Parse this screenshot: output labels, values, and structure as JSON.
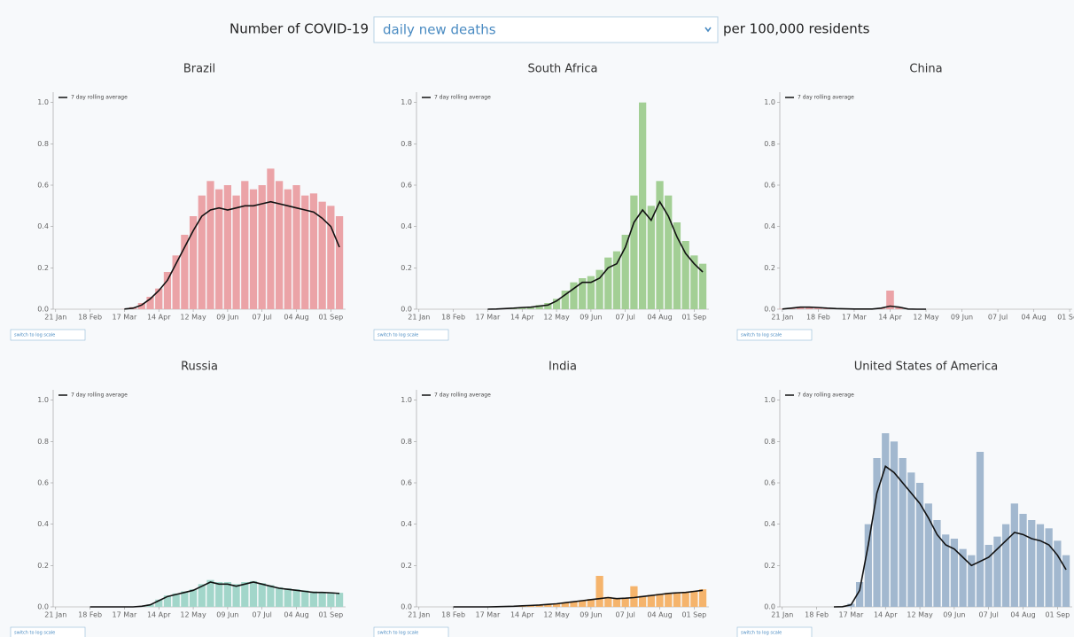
{
  "header": {
    "prefix": "Number of COVID-19",
    "select": "daily new deaths",
    "suffix": "per 100,000 residents"
  },
  "chart_data": [
    {
      "type": "bar",
      "title": "Brazil",
      "button": "switch to log scale",
      "x": [
        0,
        7,
        14,
        21,
        28,
        35,
        42,
        49,
        56,
        63,
        70,
        77,
        84,
        91,
        98,
        105,
        112,
        119,
        126,
        133,
        140,
        147,
        154,
        161,
        168,
        175,
        182,
        189,
        196,
        203,
        210,
        217,
        224,
        231
      ],
      "xlim": [
        -2,
        236
      ],
      "ylim": [
        0,
        1.05
      ],
      "xticks": [
        {
          "value": 0,
          "label": "21 Jan"
        },
        {
          "value": 28,
          "label": "18 Feb"
        },
        {
          "value": 56,
          "label": "17 Mar"
        },
        {
          "value": 84,
          "label": "14 Apr"
        },
        {
          "value": 112,
          "label": "12 May"
        },
        {
          "value": 140,
          "label": "09 Jun"
        },
        {
          "value": 168,
          "label": "07 Jul"
        },
        {
          "value": 196,
          "label": "04 Aug"
        },
        {
          "value": 224,
          "label": "01 Sep"
        }
      ],
      "yticks": [
        {
          "value": 0,
          "label": "0.0"
        },
        0.2,
        0.4,
        0.6,
        0.8,
        {
          "value": 1,
          "label": "1.0"
        }
      ],
      "series": [
        {
          "type": "bar",
          "color": "#eba3a7",
          "values": [
            null,
            null,
            null,
            null,
            null,
            null,
            null,
            null,
            0.001,
            0.01,
            0.03,
            0.06,
            0.1,
            0.18,
            0.26,
            0.36,
            0.45,
            0.55,
            0.62,
            0.58,
            0.6,
            0.55,
            0.62,
            0.58,
            0.6,
            0.68,
            0.62,
            0.58,
            0.6,
            0.55,
            0.56,
            0.52,
            0.5,
            0.45
          ]
        },
        {
          "type": "line",
          "name": "7 day rolling average",
          "color": "#111111",
          "values": [
            null,
            null,
            null,
            null,
            null,
            null,
            null,
            null,
            0.001,
            0.005,
            0.02,
            0.05,
            0.09,
            0.14,
            0.22,
            0.3,
            0.38,
            0.45,
            0.48,
            0.49,
            0.48,
            0.49,
            0.5,
            0.5,
            0.51,
            0.52,
            0.51,
            0.5,
            0.49,
            0.48,
            0.47,
            0.44,
            0.4,
            0.3
          ]
        }
      ]
    },
    {
      "type": "bar",
      "title": "South Africa",
      "button": "switch to log scale",
      "x": [
        0,
        7,
        14,
        21,
        28,
        35,
        42,
        49,
        56,
        63,
        70,
        77,
        84,
        91,
        98,
        105,
        112,
        119,
        126,
        133,
        140,
        147,
        154,
        161,
        168,
        175,
        182,
        189,
        196,
        203,
        210,
        217,
        224,
        231
      ],
      "xlim": [
        -2,
        236
      ],
      "ylim": [
        0,
        1.05
      ],
      "xticks": [
        {
          "value": 0,
          "label": "21 Jan"
        },
        {
          "value": 28,
          "label": "18 Feb"
        },
        {
          "value": 56,
          "label": "17 Mar"
        },
        {
          "value": 84,
          "label": "14 Apr"
        },
        {
          "value": 112,
          "label": "12 May"
        },
        {
          "value": 140,
          "label": "09 Jun"
        },
        {
          "value": 168,
          "label": "07 Jul"
        },
        {
          "value": 196,
          "label": "04 Aug"
        },
        {
          "value": 224,
          "label": "01 Sep"
        }
      ],
      "yticks": [
        {
          "value": 0,
          "label": "0.0"
        },
        0.2,
        0.4,
        0.6,
        0.8,
        {
          "value": 1,
          "label": "1.0"
        }
      ],
      "series": [
        {
          "type": "bar",
          "color": "#a3cf95",
          "values": [
            null,
            null,
            null,
            null,
            null,
            null,
            null,
            null,
            0,
            0.002,
            0.004,
            0.006,
            0.01,
            0.012,
            0.02,
            0.03,
            0.05,
            0.09,
            0.13,
            0.15,
            0.16,
            0.19,
            0.25,
            0.28,
            0.36,
            0.55,
            1.0,
            0.5,
            0.62,
            0.55,
            0.42,
            0.33,
            0.26,
            0.22
          ]
        },
        {
          "type": "line",
          "name": "7 day rolling average",
          "color": "#111111",
          "values": [
            null,
            null,
            null,
            null,
            null,
            null,
            null,
            null,
            0,
            0.001,
            0.003,
            0.005,
            0.008,
            0.01,
            0.015,
            0.02,
            0.04,
            0.07,
            0.1,
            0.13,
            0.13,
            0.15,
            0.2,
            0.22,
            0.3,
            0.42,
            0.48,
            0.43,
            0.52,
            0.45,
            0.35,
            0.27,
            0.22,
            0.18
          ]
        }
      ]
    },
    {
      "type": "bar",
      "title": "China",
      "button": "switch to log scale",
      "x": [
        0,
        7,
        14,
        21,
        28,
        35,
        42,
        49,
        56,
        63,
        70,
        77,
        84,
        91,
        98,
        105,
        112,
        119,
        126,
        133,
        140,
        147,
        154,
        161,
        168,
        175,
        182,
        189,
        196,
        203,
        210,
        217,
        224,
        231
      ],
      "xlim": [
        -2,
        226
      ],
      "ylim": [
        0,
        1.05
      ],
      "xticks": [
        {
          "value": 0,
          "label": "21 Jan"
        },
        {
          "value": 28,
          "label": "18 Feb"
        },
        {
          "value": 56,
          "label": "17 Mar"
        },
        {
          "value": 84,
          "label": "14 Apr"
        },
        {
          "value": 112,
          "label": "12 May"
        },
        {
          "value": 140,
          "label": "09 Jun"
        },
        {
          "value": 168,
          "label": "07 Jul"
        },
        {
          "value": 196,
          "label": "04 Aug"
        },
        {
          "value": 224,
          "label": "01 Sep"
        }
      ],
      "yticks": [
        {
          "value": 0,
          "label": "0.0"
        },
        0.2,
        0.4,
        0.6,
        0.8,
        {
          "value": 1,
          "label": "1.0"
        }
      ],
      "series": [
        {
          "type": "bar",
          "color": "#eba3a7",
          "values": [
            0.002,
            0.006,
            0.012,
            0.012,
            0.01,
            0.006,
            0.003,
            0.002,
            0.001,
            0.001,
            0.002,
            0.006,
            0.09,
            0.01,
            0.001,
            0,
            0,
            null,
            null,
            null,
            null,
            null,
            null,
            null,
            null,
            null,
            null,
            null,
            null,
            null,
            null,
            null,
            null,
            null
          ]
        },
        {
          "type": "line",
          "name": "7 day rolling average",
          "color": "#111111",
          "values": [
            0.001,
            0.005,
            0.01,
            0.01,
            0.008,
            0.005,
            0.003,
            0.002,
            0.001,
            0.001,
            0.001,
            0.005,
            0.015,
            0.01,
            0.001,
            0,
            0,
            null,
            null,
            null,
            null,
            null,
            null,
            null,
            null,
            null,
            null,
            null,
            null,
            null,
            null,
            null,
            null,
            null
          ]
        }
      ]
    },
    {
      "type": "bar",
      "title": "Russia",
      "button": "switch to log scale",
      "x": [
        0,
        7,
        14,
        21,
        28,
        35,
        42,
        49,
        56,
        63,
        70,
        77,
        84,
        91,
        98,
        105,
        112,
        119,
        126,
        133,
        140,
        147,
        154,
        161,
        168,
        175,
        182,
        189,
        196,
        203,
        210,
        217,
        224,
        231
      ],
      "xlim": [
        -2,
        236
      ],
      "ylim": [
        0,
        1.05
      ],
      "xticks": [
        {
          "value": 0,
          "label": "21 Jan"
        },
        {
          "value": 28,
          "label": "18 Feb"
        },
        {
          "value": 56,
          "label": "17 Mar"
        },
        {
          "value": 84,
          "label": "14 Apr"
        },
        {
          "value": 112,
          "label": "12 May"
        },
        {
          "value": 140,
          "label": "09 Jun"
        },
        {
          "value": 168,
          "label": "07 Jul"
        },
        {
          "value": 196,
          "label": "04 Aug"
        },
        {
          "value": 224,
          "label": "01 Sep"
        }
      ],
      "yticks": [
        {
          "value": 0,
          "label": "0.0"
        },
        0.2,
        0.4,
        0.6,
        0.8,
        {
          "value": 1,
          "label": "1.0"
        }
      ],
      "series": [
        {
          "type": "bar",
          "color": "#a2d6ca",
          "values": [
            null,
            null,
            null,
            null,
            0,
            0,
            0,
            0,
            0,
            0,
            0.004,
            0.012,
            0.035,
            0.055,
            0.065,
            0.075,
            0.085,
            0.11,
            0.13,
            0.12,
            0.12,
            0.11,
            0.12,
            0.125,
            0.115,
            0.105,
            0.095,
            0.09,
            0.085,
            0.08,
            0.075,
            0.073,
            0.07,
            0.068
          ]
        },
        {
          "type": "line",
          "name": "7 day rolling average",
          "color": "#111111",
          "values": [
            null,
            null,
            null,
            null,
            0,
            0,
            0,
            0,
            0,
            0,
            0.003,
            0.01,
            0.03,
            0.05,
            0.06,
            0.07,
            0.08,
            0.1,
            0.12,
            0.11,
            0.11,
            0.1,
            0.11,
            0.12,
            0.11,
            0.1,
            0.09,
            0.085,
            0.08,
            0.075,
            0.07,
            0.07,
            0.068,
            0.065
          ]
        }
      ]
    },
    {
      "type": "bar",
      "title": "India",
      "button": "switch to log scale",
      "x": [
        0,
        7,
        14,
        21,
        28,
        35,
        42,
        49,
        56,
        63,
        70,
        77,
        84,
        91,
        98,
        105,
        112,
        119,
        126,
        133,
        140,
        147,
        154,
        161,
        168,
        175,
        182,
        189,
        196,
        203,
        210,
        217,
        224,
        231
      ],
      "xlim": [
        -2,
        236
      ],
      "ylim": [
        0,
        1.05
      ],
      "xticks": [
        {
          "value": 0,
          "label": "21 Jan"
        },
        {
          "value": 28,
          "label": "18 Feb"
        },
        {
          "value": 56,
          "label": "17 Mar"
        },
        {
          "value": 84,
          "label": "14 Apr"
        },
        {
          "value": 112,
          "label": "12 May"
        },
        {
          "value": 140,
          "label": "09 Jun"
        },
        {
          "value": 168,
          "label": "07 Jul"
        },
        {
          "value": 196,
          "label": "04 Aug"
        },
        {
          "value": 224,
          "label": "01 Sep"
        }
      ],
      "yticks": [
        {
          "value": 0,
          "label": "0.0"
        },
        0.2,
        0.4,
        0.6,
        0.8,
        {
          "value": 1,
          "label": "1.0"
        }
      ],
      "series": [
        {
          "type": "bar",
          "color": "#f5b46c",
          "values": [
            null,
            null,
            null,
            null,
            0,
            0,
            0,
            0,
            0,
            0.001,
            0.002,
            0.003,
            0.005,
            0.007,
            0.01,
            0.013,
            0.016,
            0.022,
            0.027,
            0.032,
            0.038,
            0.15,
            0.048,
            0.043,
            0.045,
            0.1,
            0.053,
            0.058,
            0.063,
            0.068,
            0.07,
            0.073,
            0.078,
            0.085
          ]
        },
        {
          "type": "line",
          "name": "7 day rolling average",
          "color": "#111111",
          "values": [
            null,
            null,
            null,
            null,
            0,
            0,
            0,
            0,
            0,
            0.001,
            0.002,
            0.003,
            0.005,
            0.007,
            0.009,
            0.012,
            0.015,
            0.02,
            0.025,
            0.03,
            0.035,
            0.04,
            0.045,
            0.04,
            0.042,
            0.045,
            0.05,
            0.055,
            0.06,
            0.065,
            0.068,
            0.07,
            0.075,
            0.08
          ]
        }
      ]
    },
    {
      "type": "bar",
      "title": "United States of America",
      "button": "switch to log scale",
      "x": [
        0,
        7,
        14,
        21,
        28,
        35,
        42,
        49,
        56,
        63,
        70,
        77,
        84,
        91,
        98,
        105,
        112,
        119,
        126,
        133,
        140,
        147,
        154,
        161,
        168,
        175,
        182,
        189,
        196,
        203,
        210,
        217,
        224,
        231
      ],
      "xlim": [
        -2,
        236
      ],
      "ylim": [
        0,
        1.05
      ],
      "xticks": [
        {
          "value": 0,
          "label": "21 Jan"
        },
        {
          "value": 28,
          "label": "18 Feb"
        },
        {
          "value": 56,
          "label": "17 Mar"
        },
        {
          "value": 84,
          "label": "14 Apr"
        },
        {
          "value": 112,
          "label": "12 May"
        },
        {
          "value": 140,
          "label": "09 Jun"
        },
        {
          "value": 168,
          "label": "07 Jul"
        },
        {
          "value": 196,
          "label": "04 Aug"
        },
        {
          "value": 224,
          "label": "01 Sep"
        }
      ],
      "yticks": [
        {
          "value": 0,
          "label": "0.0"
        },
        0.2,
        0.4,
        0.6,
        0.8,
        {
          "value": 1,
          "label": "1.0"
        }
      ],
      "series": [
        {
          "type": "bar",
          "color": "#a2b8cf",
          "values": [
            null,
            null,
            null,
            null,
            null,
            null,
            0,
            0.002,
            0.015,
            0.12,
            0.4,
            0.72,
            0.84,
            0.8,
            0.72,
            0.65,
            0.6,
            0.5,
            0.42,
            0.35,
            0.33,
            0.28,
            0.25,
            0.75,
            0.3,
            0.34,
            0.4,
            0.5,
            0.45,
            0.42,
            0.4,
            0.38,
            0.32,
            0.25
          ]
        },
        {
          "type": "line",
          "name": "7 day rolling average",
          "color": "#111111",
          "values": [
            null,
            null,
            null,
            null,
            null,
            null,
            0,
            0.001,
            0.01,
            0.08,
            0.3,
            0.55,
            0.68,
            0.65,
            0.6,
            0.55,
            0.5,
            0.43,
            0.35,
            0.3,
            0.28,
            0.24,
            0.2,
            0.22,
            0.24,
            0.28,
            0.32,
            0.36,
            0.35,
            0.33,
            0.32,
            0.3,
            0.25,
            0.18
          ]
        }
      ]
    }
  ]
}
